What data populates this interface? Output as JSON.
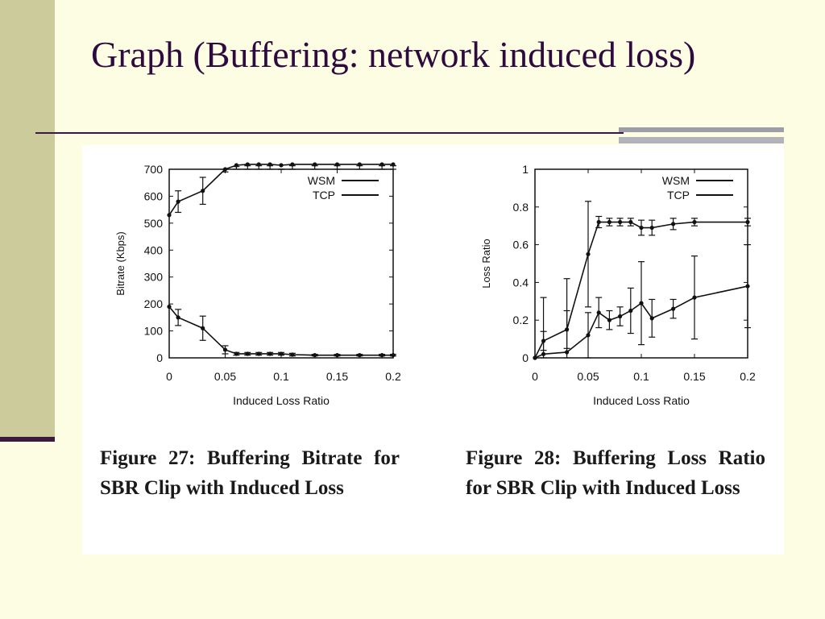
{
  "slide": {
    "title": "Graph (Buffering: network induced loss)",
    "colors": {
      "background": "#fdfde3",
      "left_bar": "#cbcb9b",
      "title": "#2e0a3e",
      "rule": "#3d1a3d",
      "panel": "#ffffff"
    }
  },
  "captions": {
    "fig27": "Figure 27: Buffering Bitrate for SBR Clip with Induced Loss",
    "fig28": "Figure 28: Buffering Loss Ratio for SBR Clip with Induced Loss"
  },
  "chart_data": [
    {
      "type": "line",
      "title": "",
      "xlabel": "Induced Loss Ratio",
      "ylabel": "Bitrate (Kbps)",
      "xlim": [
        0,
        0.2
      ],
      "ylim": [
        0,
        700
      ],
      "xticks": [
        0,
        0.05,
        0.1,
        0.15,
        0.2
      ],
      "xtick_labels": [
        "0",
        "0.05",
        "0.1",
        "0.15",
        "0.2"
      ],
      "yticks": [
        0,
        100,
        200,
        300,
        400,
        500,
        600,
        700
      ],
      "ytick_labels": [
        "0",
        "100",
        "200",
        "300",
        "400",
        "500",
        "600",
        "700"
      ],
      "grid": false,
      "legend": "top-right",
      "series": [
        {
          "name": "WSM",
          "x": [
            0,
            0.008,
            0.03,
            0.05,
            0.06,
            0.07,
            0.08,
            0.09,
            0.1,
            0.11,
            0.13,
            0.15,
            0.17,
            0.19,
            0.2
          ],
          "y": [
            530,
            580,
            620,
            700,
            715,
            718,
            718,
            718,
            715,
            718,
            718,
            718,
            718,
            718,
            718
          ],
          "err": [
            0,
            40,
            50,
            10,
            5,
            5,
            5,
            5,
            15,
            5,
            5,
            5,
            5,
            5,
            5
          ]
        },
        {
          "name": "TCP",
          "x": [
            0,
            0.008,
            0.03,
            0.05,
            0.06,
            0.07,
            0.08,
            0.09,
            0.1,
            0.11,
            0.13,
            0.15,
            0.17,
            0.19,
            0.2
          ],
          "y": [
            190,
            150,
            110,
            30,
            15,
            15,
            15,
            15,
            15,
            12,
            10,
            10,
            10,
            10,
            10
          ],
          "err": [
            0,
            30,
            45,
            15,
            5,
            5,
            5,
            5,
            5,
            5,
            3,
            3,
            3,
            3,
            3
          ]
        }
      ]
    },
    {
      "type": "line",
      "title": "",
      "xlabel": "Induced Loss Ratio",
      "ylabel": "Loss Ratio",
      "xlim": [
        0,
        0.2
      ],
      "ylim": [
        0,
        1
      ],
      "xticks": [
        0,
        0.05,
        0.1,
        0.15,
        0.2
      ],
      "xtick_labels": [
        "0",
        "0.05",
        "0.1",
        "0.15",
        "0.2"
      ],
      "yticks": [
        0,
        0.2,
        0.4,
        0.6,
        0.8,
        1
      ],
      "ytick_labels": [
        "0",
        "0.2",
        "0.4",
        "0.6",
        "0.8",
        "1"
      ],
      "grid": false,
      "legend": "top-right",
      "series": [
        {
          "name": "WSM",
          "x": [
            0,
            0.008,
            0.03,
            0.05,
            0.06,
            0.07,
            0.08,
            0.09,
            0.1,
            0.11,
            0.13,
            0.15,
            0.2
          ],
          "y": [
            0,
            0.09,
            0.15,
            0.55,
            0.72,
            0.72,
            0.72,
            0.72,
            0.69,
            0.69,
            0.71,
            0.72,
            0.72
          ],
          "err": [
            0,
            0.05,
            0.1,
            0.28,
            0.03,
            0.02,
            0.02,
            0.02,
            0.04,
            0.04,
            0.03,
            0.02,
            0.02
          ]
        },
        {
          "name": "TCP",
          "x": [
            0,
            0.008,
            0.03,
            0.05,
            0.06,
            0.07,
            0.08,
            0.09,
            0.1,
            0.11,
            0.13,
            0.15,
            0.2
          ],
          "y": [
            0,
            0.02,
            0.03,
            0.12,
            0.24,
            0.2,
            0.22,
            0.25,
            0.29,
            0.21,
            0.26,
            0.32,
            0.38
          ],
          "err": [
            0,
            0.3,
            0.39,
            0.12,
            0.08,
            0.05,
            0.05,
            0.12,
            0.22,
            0.1,
            0.05,
            0.22,
            0.22
          ]
        }
      ]
    }
  ]
}
